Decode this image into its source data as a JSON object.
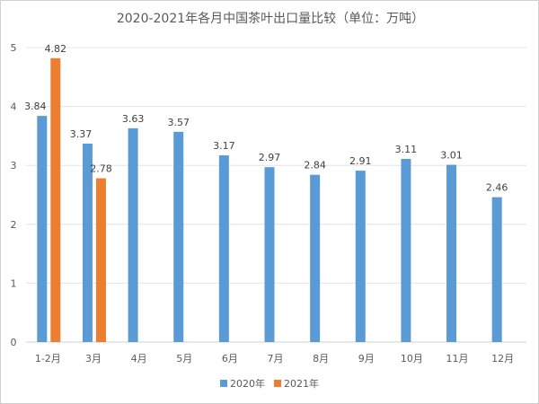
{
  "chart_data": {
    "type": "bar",
    "title": "2020-2021年各月中国茶叶出口量比较（单位：万吨）",
    "categories": [
      "1-2月",
      "3月",
      "4月",
      "5月",
      "6月",
      "7月",
      "8月",
      "9月",
      "10月",
      "11月",
      "12月"
    ],
    "series": [
      {
        "name": "2020年",
        "color": "#5b9bd5",
        "values": [
          3.84,
          3.37,
          3.63,
          3.57,
          3.17,
          2.97,
          2.84,
          2.91,
          3.11,
          3.01,
          2.46
        ]
      },
      {
        "name": "2021年",
        "color": "#ed7d31",
        "values": [
          4.82,
          2.78,
          null,
          null,
          null,
          null,
          null,
          null,
          null,
          null,
          null
        ]
      }
    ],
    "ylim": [
      0,
      5
    ],
    "yticks": [
      "0",
      "1",
      "2",
      "3",
      "4",
      "5"
    ],
    "grid": true,
    "legend": "bottom",
    "xlabel": "",
    "ylabel": ""
  }
}
